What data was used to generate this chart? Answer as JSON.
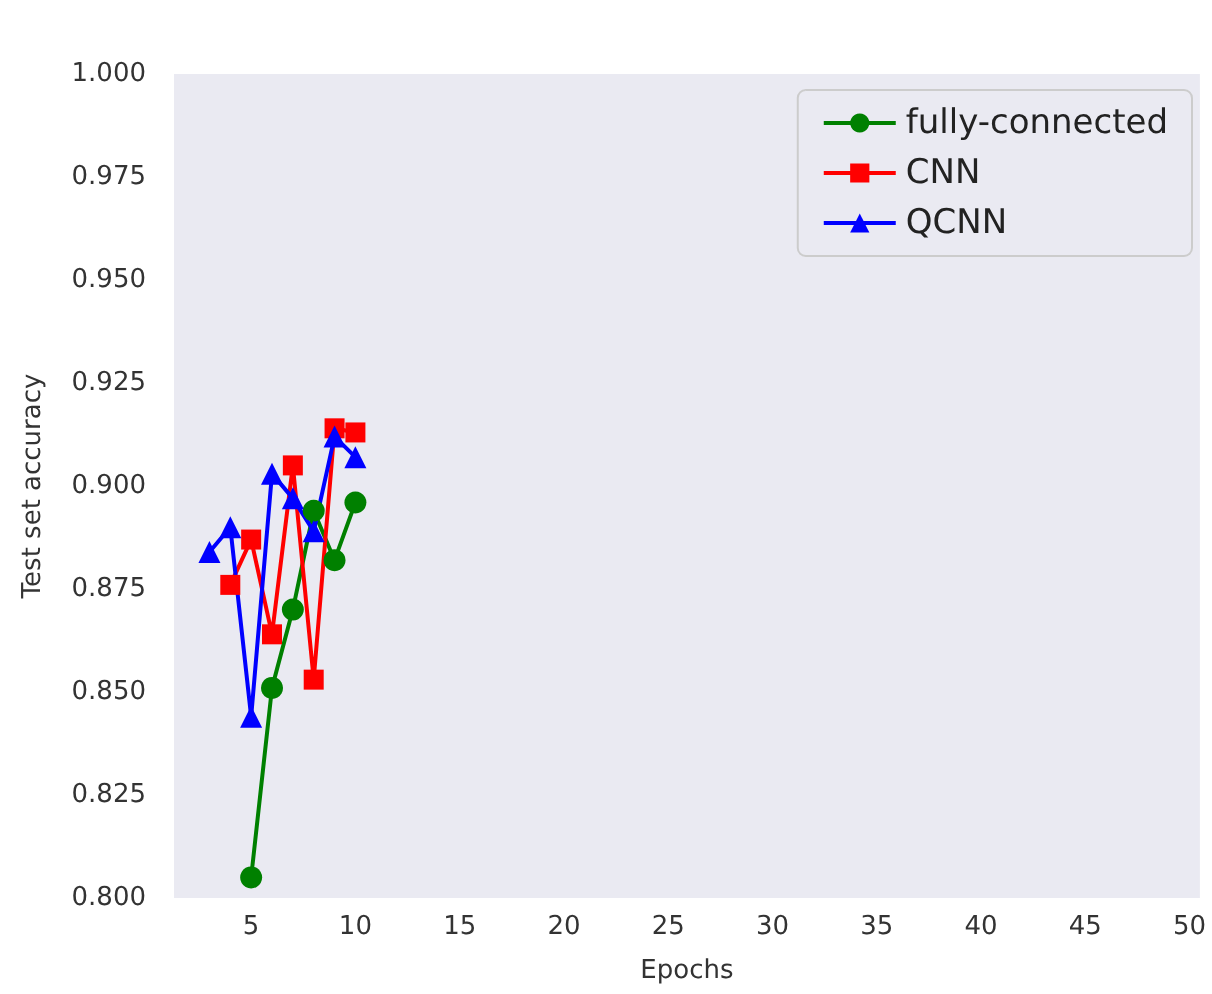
{
  "chart_data": {
    "type": "line",
    "xlabel": "Epochs",
    "ylabel": "Test set accuracy",
    "xlim": [
      1.3,
      50.5
    ],
    "xticks": [
      5,
      10,
      15,
      20,
      25,
      30,
      35,
      40,
      45,
      50
    ],
    "ylim": [
      0.8,
      1.0
    ],
    "yticks": [
      {
        "value": 0.8,
        "label": "0.800"
      },
      {
        "value": 0.825,
        "label": "0.825"
      },
      {
        "value": 0.85,
        "label": "0.850"
      },
      {
        "value": 0.875,
        "label": "0.875"
      },
      {
        "value": 0.9,
        "label": "0.900"
      },
      {
        "value": 0.925,
        "label": "0.925"
      },
      {
        "value": 0.95,
        "label": "0.950"
      },
      {
        "value": 0.975,
        "label": "0.975"
      },
      {
        "value": 1.0,
        "label": "1.000"
      }
    ],
    "grid": false,
    "legend": "top right",
    "line_style": "solid",
    "series": [
      {
        "name": "fully-connected",
        "color": "#008000",
        "marker": "circle",
        "x": [
          5,
          6,
          7,
          8,
          9,
          10
        ],
        "values": [
          0.805,
          0.851,
          0.87,
          0.894,
          0.882,
          0.896
        ]
      },
      {
        "name": "CNN",
        "color": "#ff0000",
        "marker": "square",
        "x": [
          4,
          5,
          6,
          7,
          8,
          9,
          10
        ],
        "values": [
          0.876,
          0.887,
          0.864,
          0.905,
          0.853,
          0.914,
          0.913
        ]
      },
      {
        "name": "QCNN",
        "color": "#0000ff",
        "marker": "triangle",
        "x": [
          3,
          4,
          5,
          6,
          7,
          8,
          9,
          10
        ],
        "values": [
          0.884,
          0.89,
          0.844,
          0.903,
          0.897,
          0.889,
          0.912,
          0.907
        ]
      }
    ]
  }
}
